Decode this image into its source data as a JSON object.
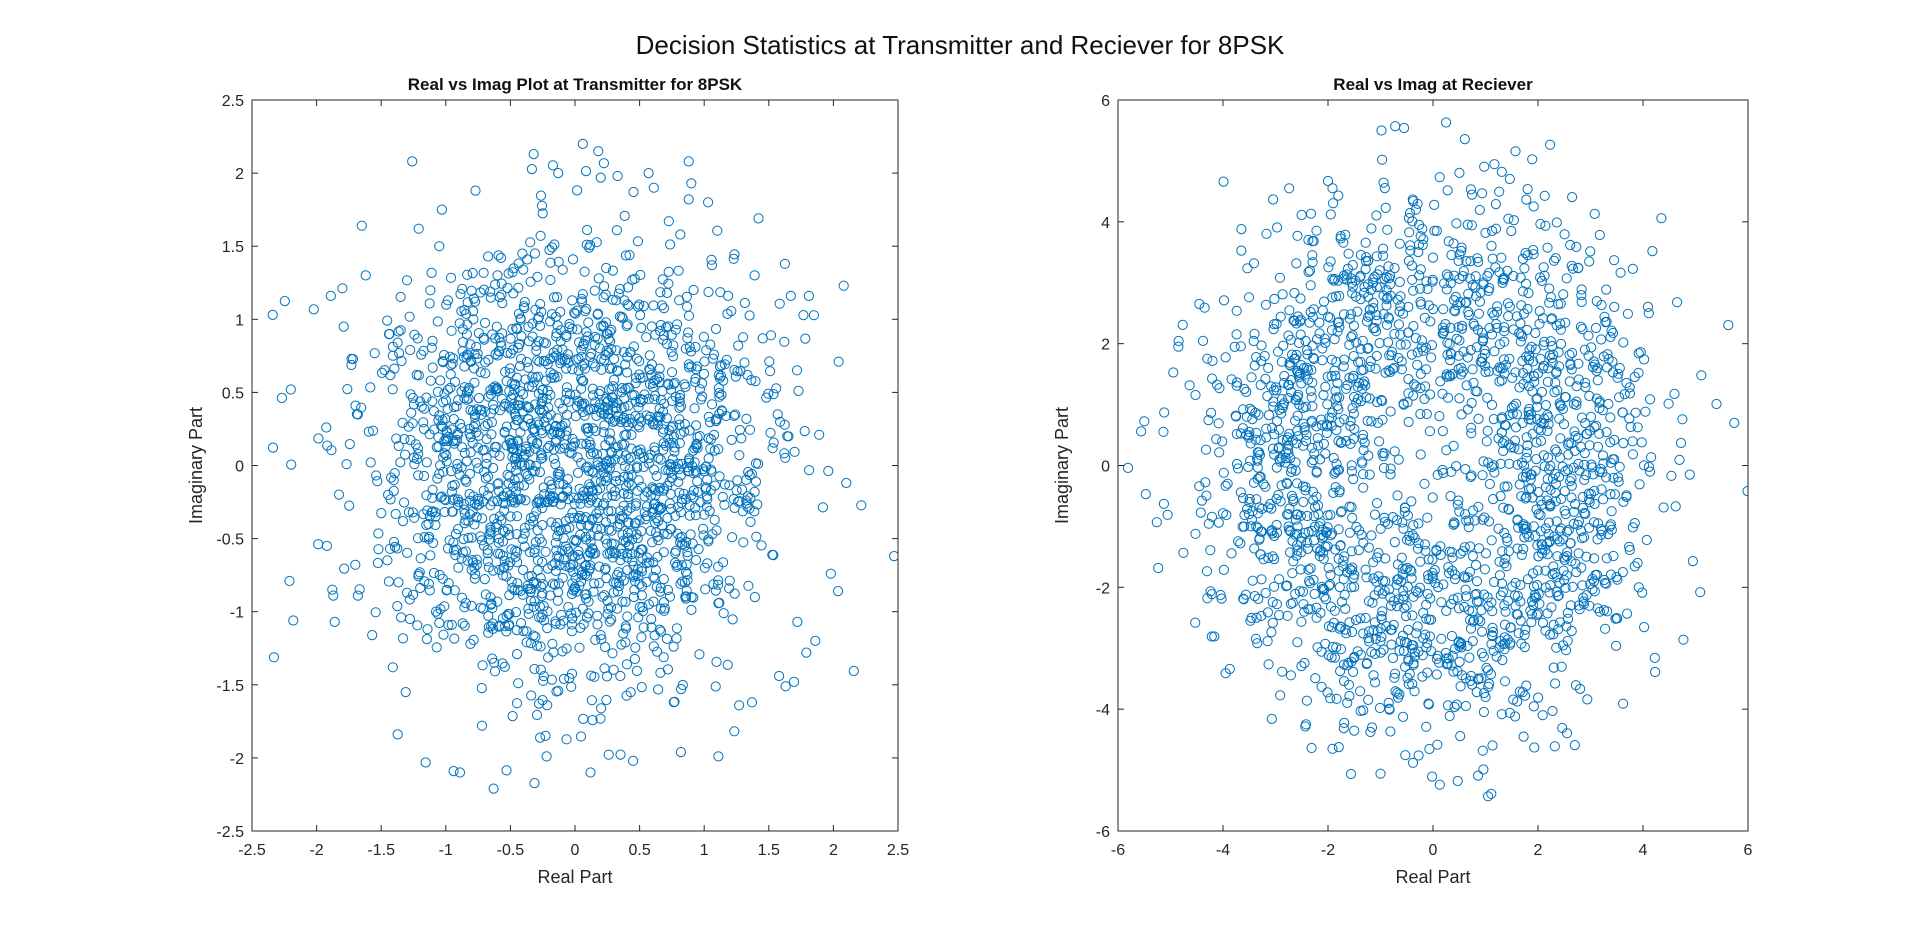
{
  "figure_title": "Decision Statistics at Transmitter and Reciever for 8PSK",
  "colors": {
    "marker": "#0072BD",
    "axis": "#262626",
    "background": "#ffffff"
  },
  "chart_data": [
    {
      "type": "scatter",
      "title": "Real vs Imag Plot at Transmitter for 8PSK",
      "xlabel": "Real Part",
      "ylabel": "Imaginary Part",
      "xlim": [
        -2.5,
        2.5
      ],
      "ylim": [
        -2.5,
        2.5
      ],
      "xticks": [
        -2.5,
        -2,
        -1.5,
        -1,
        -0.5,
        0,
        0.5,
        1,
        1.5,
        2,
        2.5
      ],
      "yticks": [
        -2.5,
        -2,
        -1.5,
        -1,
        -0.5,
        0,
        0.5,
        1,
        1.5,
        2,
        2.5
      ],
      "xticklabels": [
        "-2.5",
        "-2",
        "-1.5",
        "-1",
        "-0.5",
        "0",
        "0.5",
        "1",
        "1.5",
        "2",
        "2.5"
      ],
      "yticklabels": [
        "-2.5",
        "-2",
        "-1.5",
        "-1",
        "-0.5",
        "0",
        "0.5",
        "1",
        "1.5",
        "2",
        "2.5"
      ],
      "grid": false,
      "marker": "open circle",
      "series": [
        {
          "x": [
            -2.34,
            2.08,
            -2.2,
            -2.21,
            2.47,
            -2.18,
            2.1,
            2.04,
            -1.26,
            0.88,
            -1.65,
            -1.89,
            -1.86,
            -0.94,
            -0.89,
            -0.63,
            0.06,
            0.57,
            0.9,
            1.03,
            1.42,
            1.67,
            1.81,
            1.79,
            -1.05,
            -1.62,
            -1.73,
            -1.21,
            -1.03,
            -0.77,
            -0.32,
            -0.13,
            0.18,
            0.33,
            0.61,
            0.88,
            1.27,
            1.63,
            1.86,
            1.98,
            -1.92,
            -1.79,
            -1.68,
            -1.57,
            -1.41,
            -1.31,
            -0.72,
            -0.22,
            0.12,
            0.45,
            0.82,
            1.11,
            1.37,
            1.58,
            1.73,
            1.89,
            0.28,
            -0.05,
            -0.39,
            0.63
          ],
          "y": [
            1.03,
            1.23,
            0.52,
            -0.79,
            -0.62,
            -1.06,
            -0.12,
            0.71,
            2.08,
            2.08,
            1.64,
            1.16,
            -1.07,
            -2.09,
            -2.1,
            -2.21,
            2.2,
            2.0,
            1.93,
            1.8,
            1.69,
            1.16,
            1.16,
            -1.28,
            1.5,
            1.3,
            0.73,
            1.62,
            1.75,
            1.88,
            2.13,
            2.0,
            2.15,
            1.98,
            1.9,
            1.82,
            -1.64,
            -1.51,
            -1.2,
            -0.74,
            -0.55,
            0.95,
            -0.89,
            -1.16,
            -1.38,
            -1.55,
            -1.78,
            -1.99,
            -2.1,
            -2.02,
            -1.96,
            -1.99,
            -1.62,
            -1.44,
            0.51,
            0.21,
            0.02,
            -0.23,
            0.27,
            -0.36
          ]
        }
      ]
    },
    {
      "type": "scatter",
      "title": "Real vs Imag at Reciever",
      "xlabel": "Real Part",
      "ylabel": "Imaginary Part",
      "xlim": [
        -6,
        6
      ],
      "ylim": [
        -6,
        6
      ],
      "xticks": [
        -6,
        -4,
        -2,
        0,
        2,
        4,
        6
      ],
      "yticks": [
        -6,
        -4,
        -2,
        0,
        2,
        4,
        6
      ],
      "xticklabels": [
        "-6",
        "-4",
        "-2",
        "0",
        "2",
        "4",
        "6"
      ],
      "yticklabels": [
        "-6",
        "-4",
        "-2",
        "0",
        "2",
        "4",
        "6"
      ],
      "grid": false,
      "marker": "open circle",
      "series": [
        {
          "x": [
            0.25,
            -0.72,
            -0.98,
            -0.55,
            -3.99,
            -5.56,
            -5.81,
            -5.47,
            5.99,
            5.74,
            5.4,
            5.11,
            4.95,
            4.35,
            4.18,
            3.45,
            2.7,
            2.32,
            1.11,
            1.05,
            0.47,
            0.13,
            -1.0,
            -2.0,
            -2.74,
            -3.65,
            -4.35,
            -4.85,
            -5.12,
            -5.26,
            -4.53,
            -3.95,
            -3.07,
            -2.42,
            -1.7,
            -0.38,
            0.96,
            1.93,
            2.94,
            3.62,
            4.23,
            4.77,
            5.09,
            4.65,
            3.08,
            1.31,
            -0.97,
            -2.58,
            -3.41,
            -3.87
          ],
          "y": [
            5.63,
            5.57,
            5.5,
            5.54,
            4.66,
            0.56,
            -0.04,
            -0.47,
            -0.42,
            0.7,
            1.01,
            1.48,
            -1.57,
            4.06,
            3.52,
            3.37,
            -4.59,
            -4.61,
            -5.39,
            -5.43,
            -5.18,
            -5.24,
            -5.06,
            4.67,
            4.55,
            3.88,
            2.59,
            1.95,
            0.87,
            -0.93,
            -2.58,
            -3.41,
            -4.16,
            -4.25,
            -4.31,
            -4.88,
            -4.99,
            -4.63,
            -3.84,
            -3.91,
            -3.39,
            -2.86,
            -2.08,
            2.68,
            4.13,
            4.82,
            5.02,
            3.77,
            3.32,
            -3.34
          ]
        }
      ]
    }
  ]
}
